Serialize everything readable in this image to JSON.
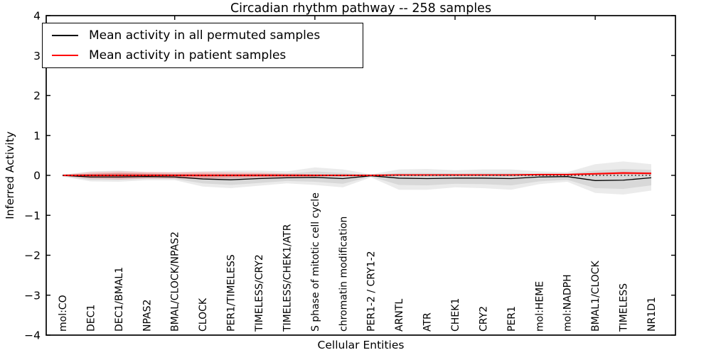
{
  "chart_data": {
    "type": "line",
    "title": "Circadian rhythm pathway -- 258 samples",
    "xlabel": "Cellular Entities",
    "ylabel": "Inferred Activity",
    "ylim": [
      -4,
      4
    ],
    "yticks": [
      4,
      3,
      2,
      1,
      0,
      -1,
      -2,
      -3,
      -4
    ],
    "grid": false,
    "legend_position": "upper left",
    "top_tick_category_indexes": [
      4,
      9,
      14,
      19
    ],
    "categories": [
      "mol:CO",
      "DEC1",
      "DEC1/BMAL1",
      "NPAS2",
      "BMAL/CLOCK/NPAS2",
      "CLOCK",
      "PER1/TIMELESS",
      "TIMELESS/CRY2",
      "TIMELESS/CHEK1/ATR",
      "S phase of mitotic cell cycle",
      "chromatin modification",
      "PER1-2 / CRY1-2",
      "ARNTL",
      "ATR",
      "CHEK1",
      "CRY2",
      "PER1",
      "mol:HEME",
      "mol:NADPH",
      "BMAL1/CLOCK",
      "TIMELESS",
      "NR1D1"
    ],
    "series": [
      {
        "name": "Mean activity in all permuted samples",
        "color": "#000000",
        "values": [
          0.0,
          -0.04,
          -0.04,
          -0.03,
          -0.04,
          -0.09,
          -0.11,
          -0.08,
          -0.06,
          -0.05,
          -0.08,
          -0.01,
          -0.07,
          -0.08,
          -0.07,
          -0.07,
          -0.08,
          -0.04,
          -0.03,
          -0.13,
          -0.12,
          -0.06
        ]
      },
      {
        "name": "Mean activity in patient samples",
        "color": "#ff0000",
        "values": [
          0.0,
          0.0,
          0.0,
          0.0,
          0.0,
          0.0,
          0.0,
          0.0,
          0.0,
          0.0,
          0.0,
          0.0,
          0.01,
          0.01,
          0.01,
          0.01,
          0.01,
          0.02,
          0.02,
          0.04,
          0.06,
          0.05
        ]
      }
    ],
    "zero_reference_line": {
      "y": 0,
      "style": "dotted",
      "color": "#000000"
    },
    "bands": [
      {
        "name": "permuted-range-outer",
        "color": "rgba(0,0,0,0.08)",
        "upper": [
          0.02,
          0.1,
          0.12,
          0.08,
          0.08,
          0.1,
          0.12,
          0.12,
          0.1,
          0.2,
          0.15,
          0.03,
          0.15,
          0.16,
          0.13,
          0.15,
          0.15,
          0.1,
          0.08,
          0.28,
          0.35,
          0.28
        ],
        "lower": [
          -0.03,
          -0.15,
          -0.16,
          -0.12,
          -0.12,
          -0.28,
          -0.32,
          -0.26,
          -0.2,
          -0.24,
          -0.3,
          -0.05,
          -0.36,
          -0.36,
          -0.3,
          -0.32,
          -0.36,
          -0.22,
          -0.16,
          -0.44,
          -0.48,
          -0.38
        ]
      },
      {
        "name": "permuted-range-inner",
        "color": "rgba(0,0,0,0.08)",
        "upper": [
          0.01,
          0.04,
          0.06,
          0.04,
          0.03,
          0.02,
          0.03,
          0.04,
          0.04,
          0.1,
          0.06,
          0.01,
          0.06,
          0.06,
          0.05,
          0.06,
          0.06,
          0.04,
          0.04,
          0.12,
          0.16,
          0.14
        ],
        "lower": [
          -0.02,
          -0.11,
          -0.11,
          -0.08,
          -0.09,
          -0.2,
          -0.24,
          -0.19,
          -0.14,
          -0.16,
          -0.21,
          -0.03,
          -0.24,
          -0.25,
          -0.21,
          -0.22,
          -0.25,
          -0.15,
          -0.11,
          -0.32,
          -0.34,
          -0.25
        ]
      },
      {
        "name": "patient-range-outer",
        "color": "rgba(255,0,0,0.14)",
        "upper": [
          0.02,
          0.08,
          0.1,
          0.09,
          0.08,
          0.09,
          0.08,
          0.07,
          0.05,
          0.03,
          0.03,
          0.02,
          0.03,
          0.03,
          0.03,
          0.03,
          0.03,
          0.03,
          0.04,
          0.06,
          0.09,
          0.08
        ],
        "lower": [
          -0.02,
          -0.08,
          -0.1,
          -0.08,
          -0.08,
          -0.09,
          -0.08,
          -0.06,
          -0.05,
          -0.03,
          -0.03,
          -0.02,
          -0.01,
          -0.01,
          -0.01,
          -0.01,
          -0.01,
          0.0,
          0.0,
          0.01,
          0.02,
          0.01
        ]
      },
      {
        "name": "patient-range-inner",
        "color": "rgba(255,0,0,0.22)",
        "upper": [
          0.01,
          0.04,
          0.06,
          0.05,
          0.04,
          0.05,
          0.04,
          0.04,
          0.03,
          0.02,
          0.02,
          0.01,
          0.02,
          0.02,
          0.02,
          0.02,
          0.02,
          0.03,
          0.03,
          0.05,
          0.08,
          0.07
        ],
        "lower": [
          -0.01,
          -0.04,
          -0.06,
          -0.04,
          -0.04,
          -0.05,
          -0.04,
          -0.03,
          -0.03,
          -0.02,
          -0.02,
          -0.01,
          0.0,
          0.0,
          0.0,
          0.0,
          0.0,
          0.01,
          0.01,
          0.02,
          0.04,
          0.03
        ]
      }
    ]
  }
}
